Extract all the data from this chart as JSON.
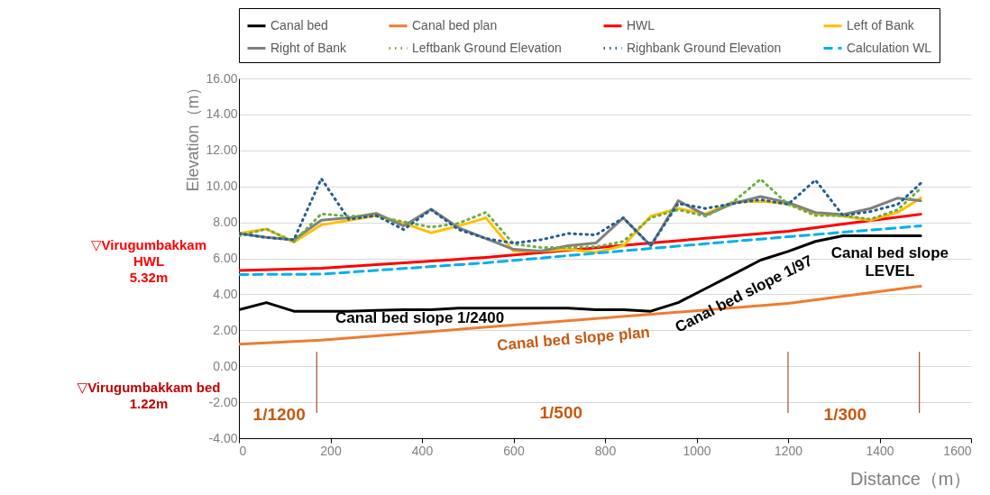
{
  "chart_data": {
    "type": "line",
    "xlabel": "Distance（m）",
    "ylabel": "Elevation（m）",
    "x": [
      0,
      60,
      120,
      180,
      240,
      300,
      360,
      420,
      480,
      540,
      600,
      660,
      720,
      780,
      840,
      900,
      960,
      1020,
      1080,
      1140,
      1200,
      1260,
      1320,
      1380,
      1440,
      1490
    ],
    "series": [
      {
        "name": "Canal bed",
        "color": "#000000",
        "line_style": "solid",
        "values": [
          3.14,
          3.54,
          3.06,
          3.06,
          3.06,
          3.1,
          3.14,
          3.14,
          3.23,
          3.23,
          3.23,
          3.23,
          3.23,
          3.14,
          3.14,
          3.06,
          3.54,
          4.32,
          5.1,
          5.9,
          6.38,
          6.94,
          7.25,
          7.25,
          7.25,
          7.25
        ]
      },
      {
        "name": "Canal bed plan",
        "color": "#ed7d31",
        "line_style": "solid",
        "x": [
          0,
          180,
          1200,
          1490
        ],
        "values": [
          1.22,
          1.45,
          3.49,
          4.45
        ]
      },
      {
        "name": "HWL",
        "color": "#ff0000",
        "line_style": "solid",
        "x": [
          0,
          180,
          540,
          900,
          1200,
          1320,
          1490
        ],
        "values": [
          5.32,
          5.45,
          6.05,
          6.85,
          7.5,
          7.9,
          8.45
        ]
      },
      {
        "name": "Left of Bank",
        "color": "#ffc000",
        "line_style": "solid",
        "values": [
          7.38,
          7.63,
          6.9,
          7.86,
          8.1,
          8.38,
          7.95,
          7.42,
          7.8,
          8.25,
          6.4,
          6.4,
          6.5,
          6.33,
          6.7,
          8.34,
          8.77,
          8.47,
          9.13,
          9.17,
          9.04,
          8.47,
          8.34,
          8.12,
          8.56,
          9.35
        ]
      },
      {
        "name": "Right of Bank",
        "color": "#808080",
        "line_style": "solid",
        "values": [
          7.38,
          7.16,
          7.03,
          8.12,
          8.25,
          8.5,
          7.8,
          8.73,
          7.7,
          7.1,
          6.5,
          6.4,
          6.7,
          6.85,
          8.25,
          6.7,
          9.2,
          8.4,
          9.05,
          9.43,
          9.1,
          8.55,
          8.43,
          8.77,
          9.35,
          9.2
        ]
      },
      {
        "name": "Leftbank Ground Elevation",
        "color": "#70ad47",
        "line_style": "dotted",
        "values": [
          7.25,
          7.63,
          6.93,
          8.47,
          8.34,
          8.34,
          8.03,
          7.73,
          7.95,
          8.56,
          6.8,
          6.6,
          6.6,
          6.64,
          6.94,
          8.25,
          8.7,
          8.34,
          9.13,
          10.4,
          9.0,
          8.38,
          8.38,
          8.17,
          8.7,
          9.9
        ]
      },
      {
        "name": "Righbank Ground Elevation",
        "color": "#255e91",
        "line_style": "dotted",
        "values": [
          7.38,
          7.16,
          7.03,
          10.43,
          8.17,
          8.38,
          7.6,
          8.7,
          7.6,
          7.1,
          6.85,
          7.03,
          7.38,
          7.3,
          8.25,
          6.7,
          9.05,
          8.77,
          9.05,
          9.26,
          9.0,
          10.35,
          8.38,
          8.6,
          9.0,
          10.17
        ]
      },
      {
        "name": "Calculation WL",
        "color": "#00b0f0",
        "line_style": "dashed",
        "x": [
          0,
          180,
          540,
          900,
          1200,
          1490
        ],
        "values": [
          5.1,
          5.12,
          5.75,
          6.55,
          7.2,
          7.8
        ]
      }
    ],
    "xlim": [
      0,
      1600
    ],
    "xticks": [
      0,
      200,
      400,
      600,
      800,
      1000,
      1200,
      1400,
      1600
    ],
    "ylim": [
      -4,
      16
    ],
    "yticks": [
      {
        "value": -4,
        "label": "-4.00"
      },
      {
        "value": -2,
        "label": "-2.00"
      },
      {
        "value": 0,
        "label": "0.00"
      },
      {
        "value": 2,
        "label": "2.00"
      },
      {
        "value": 4,
        "label": "4.00"
      },
      {
        "value": 6,
        "label": "6.00"
      },
      {
        "value": 8,
        "label": "8.00"
      },
      {
        "value": 10,
        "label": "10.00"
      },
      {
        "value": 12,
        "label": "12.00"
      },
      {
        "value": 14,
        "label": "14.00"
      },
      {
        "value": 16,
        "label": "16.00"
      }
    ],
    "grid": "y",
    "legend": "top",
    "ref_lines": [
      {
        "axis": "x",
        "value": 170,
        "color": "#a0522d"
      },
      {
        "axis": "x",
        "value": 1200,
        "color": "#a0522d"
      },
      {
        "axis": "x",
        "value": 1487,
        "color": "#a0522d"
      }
    ],
    "annotations": [
      "Canal bed slope 1/2400",
      "Canal bed slope plan",
      "Canal bed slope 1/97",
      "Canal bed slope\nLEVEL",
      {
        "text": "▽Virugumbakkam\nHWL\n5.32m",
        "x": 0,
        "y": 5.32
      },
      {
        "text": "▽Virugumbakkam bed\n1.22m",
        "x": 0,
        "y": 1.22
      },
      "1/1200",
      "1/500",
      "1/300"
    ]
  }
}
